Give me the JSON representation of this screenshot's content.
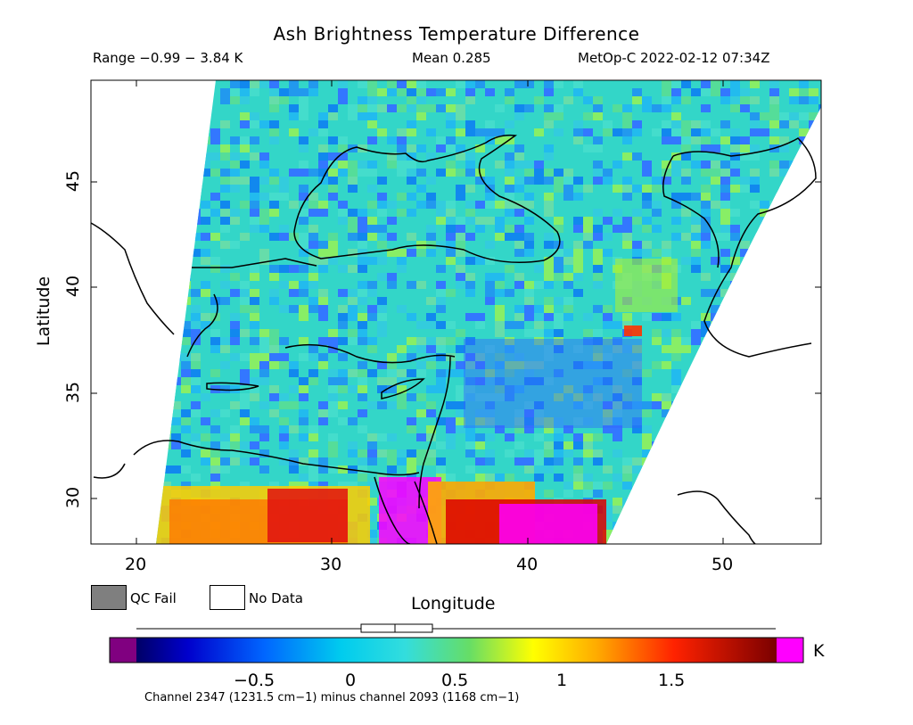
{
  "header": {
    "title": "Ash Brightness Temperature Difference",
    "range": "Range −0.99 − 3.84 K",
    "mean": "Mean 0.285",
    "satellite_time": "MetOp-C 2022-02-12 07:34Z"
  },
  "axes": {
    "x_title": "Longitude",
    "y_title": "Latitude",
    "x_ticks": [
      "20",
      "30",
      "40",
      "50"
    ],
    "y_ticks": [
      "45",
      "40",
      "35",
      "30"
    ]
  },
  "legend": {
    "qc_fail": "QC Fail",
    "no_data": "No Data",
    "qc_fail_color": "#7f7f7f",
    "no_data_color": "#ffffff"
  },
  "colorbar": {
    "unit": "K",
    "tick_labels": [
      "−0.5",
      "0",
      "0.5",
      "1",
      "1.5"
    ],
    "caption": "Channel 2347 (1231.5 cm−1) minus channel 2093 (1168 cm−1)",
    "under_color": "#800080",
    "over_color": "#ff00ff"
  }
}
